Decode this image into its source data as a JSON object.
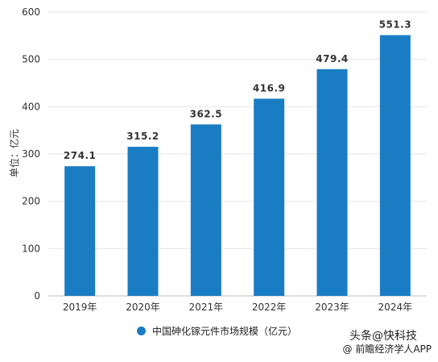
{
  "chart_data": {
    "type": "bar",
    "categories": [
      "2019年",
      "2020年",
      "2021年",
      "2022年",
      "2023年",
      "2024年"
    ],
    "values": [
      274.1,
      315.2,
      362.5,
      416.9,
      479.4,
      551.3
    ],
    "value_labels": [
      "274.1",
      "315.2",
      "362.5",
      "416.9",
      "479.4",
      "551.3"
    ],
    "ylabel": "单位：亿元",
    "ylim": [
      0,
      600
    ],
    "yticks": [
      0,
      100,
      200,
      300,
      400,
      500,
      600
    ],
    "grid": true,
    "bar_color": "#1a7dc4",
    "legend": {
      "position": "bottom",
      "label": "中国砷化镓元件市场规模（亿元）"
    }
  },
  "watermark": {
    "line1": "头条@快科技",
    "line2": "@ 前瞻经济学人APP"
  }
}
